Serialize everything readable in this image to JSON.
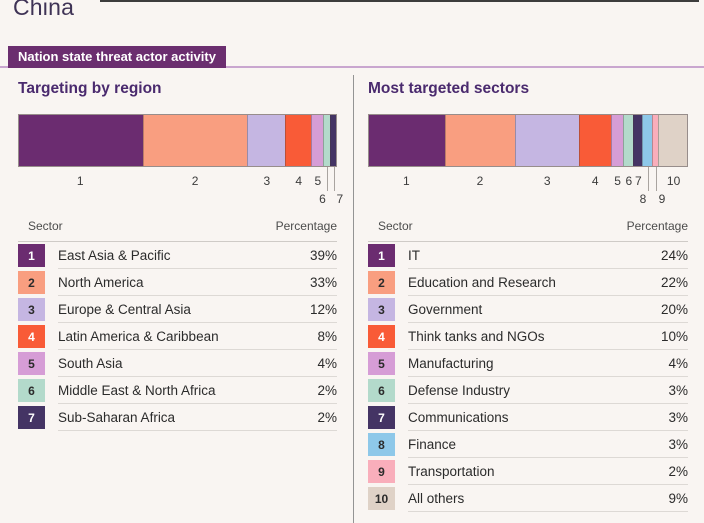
{
  "page": {
    "title": "China",
    "section_badge": "Nation state threat actor activity"
  },
  "colors": {
    "background": "#F9F5F2",
    "section_badge_bg": "#6B2E6F",
    "heading_text": "#3F3356",
    "panel_title_text": "#4A2A6E",
    "accent_rule": "#C9A6CF",
    "panel_divider": "#949494"
  },
  "chart_data": [
    {
      "type": "bar",
      "variant": "stacked-horizontal",
      "title": "Targeting by region",
      "columns": [
        "Sector",
        "Percentage"
      ],
      "categories": [
        "East Asia & Pacific",
        "North America",
        "Europe & Central Asia",
        "Latin America & Caribbean",
        "South Asia",
        "Middle East & North Africa",
        "Sub-Saharan Africa"
      ],
      "values": [
        39,
        33,
        12,
        8,
        4,
        2,
        2
      ],
      "value_labels": [
        "39%",
        "33%",
        "12%",
        "8%",
        "4%",
        "2%",
        "2%"
      ],
      "colors": [
        "#6B2C70",
        "#F99E80",
        "#C5B6E2",
        "#F95B37",
        "#D69DD6",
        "#B3DACB",
        "#443464"
      ],
      "label_rows": [
        1,
        1,
        1,
        1,
        1,
        2,
        2
      ],
      "xlim": [
        0,
        100
      ],
      "legend": "numbered table below chart"
    },
    {
      "type": "bar",
      "variant": "stacked-horizontal",
      "title": "Most targeted sectors",
      "columns": [
        "Sector",
        "Percentage"
      ],
      "categories": [
        "IT",
        "Education and Research",
        "Government",
        "Think tanks and NGOs",
        "Manufacturing",
        "Defense Industry",
        "Communications",
        "Finance",
        "Transportation",
        "All others"
      ],
      "values": [
        24,
        22,
        20,
        10,
        4,
        3,
        3,
        3,
        2,
        9
      ],
      "value_labels": [
        "24%",
        "22%",
        "20%",
        "10%",
        "4%",
        "3%",
        "3%",
        "3%",
        "2%",
        "9%"
      ],
      "colors": [
        "#6B2C70",
        "#F99E80",
        "#C5B6E2",
        "#F95B37",
        "#D69DD6",
        "#B3DACB",
        "#443464",
        "#8EC8E9",
        "#F9AEBB",
        "#DFD2C7"
      ],
      "label_rows": [
        1,
        1,
        1,
        1,
        1,
        1,
        1,
        2,
        2,
        1
      ],
      "xlim": [
        0,
        100
      ],
      "legend": "numbered table below chart"
    }
  ]
}
